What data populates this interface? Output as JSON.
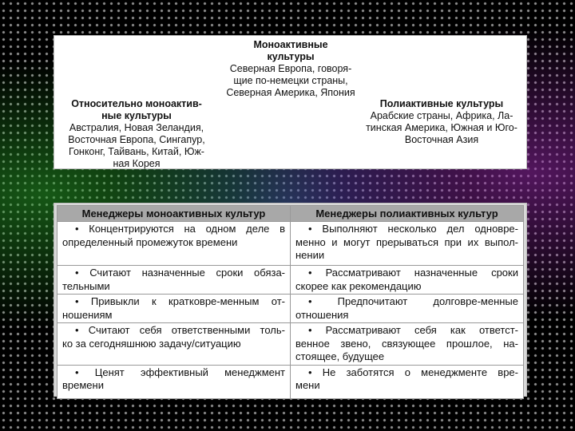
{
  "diagram": {
    "center": {
      "title": [
        "Моноактивные",
        "культуры"
      ],
      "body": [
        "Северная Европа, говоря-",
        "щие по-немецки страны,",
        "Северная Америка, Япония"
      ]
    },
    "left": {
      "title": [
        "Относительно моноактив-",
        "ные культуры"
      ],
      "body": [
        "Австралия, Новая Зеландия,",
        "Восточная Европа, Сингапур,",
        "Гонконг, Тайвань, Китай, Юж-",
        "ная Корея"
      ]
    },
    "right": {
      "title": [
        "Полиактивные культуры"
      ],
      "body": [
        "Арабские страны, Африка, Ла-",
        "тинская Америка, Южная и Юго-",
        "Восточная Азия"
      ]
    }
  },
  "table": {
    "header": [
      "Менеджеры моноактивных культур",
      "Менеджеры полиактивных культур"
    ],
    "rows": [
      [
        [
          "• Концентрируются на одном деле в",
          "определенный промежуток времени"
        ],
        [
          "• Выполняют несколько дел одновре-",
          "менно и могут прерываться при их выпол-",
          "нении"
        ]
      ],
      [
        [
          "• Считают назначенные сроки обяза-",
          "тельными"
        ],
        [
          "• Рассматривают назначенные сроки",
          "скорее как рекомендацию"
        ]
      ],
      [
        [
          "• Привыкли к кратковре-менным от-",
          "ношениям"
        ],
        [
          "• Предпочитают долговре-менные",
          "отношения"
        ]
      ],
      [
        [
          "• Считают себя ответственными толь-",
          "ко за сегодняшнюю задачу/ситуацию"
        ],
        [
          "• Рассматривают себя как ответст-",
          "венное звено, связующее прошлое, на-",
          "стоящее, будущее"
        ]
      ],
      [
        [
          "• Ценят эффективный менеджмент",
          "времени"
        ],
        [
          "• Не заботятся о менеджменте вре-",
          "мени"
        ]
      ]
    ]
  }
}
